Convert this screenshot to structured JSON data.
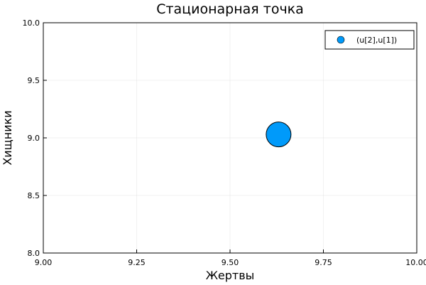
{
  "chart_data": {
    "type": "scatter",
    "title": "Стационарная точка",
    "xlabel": "Жертвы",
    "ylabel": "Хищники",
    "xlim": [
      9.0,
      10.0
    ],
    "ylim": [
      8.0,
      10.0
    ],
    "xticks": [
      9.0,
      9.25,
      9.5,
      9.75,
      10.0
    ],
    "xtick_labels": [
      "9.00",
      "9.25",
      "9.50",
      "9.75",
      "10.00"
    ],
    "yticks": [
      8.0,
      8.5,
      9.0,
      9.5,
      10.0
    ],
    "ytick_labels": [
      "8.0",
      "8.5",
      "9.0",
      "9.5",
      "10.0"
    ],
    "grid": true,
    "legend": "top-right",
    "series": [
      {
        "name": "(u[2],u[1])",
        "color": "#009AFA",
        "points": [
          {
            "x": 9.63,
            "y": 9.03
          }
        ]
      }
    ]
  }
}
